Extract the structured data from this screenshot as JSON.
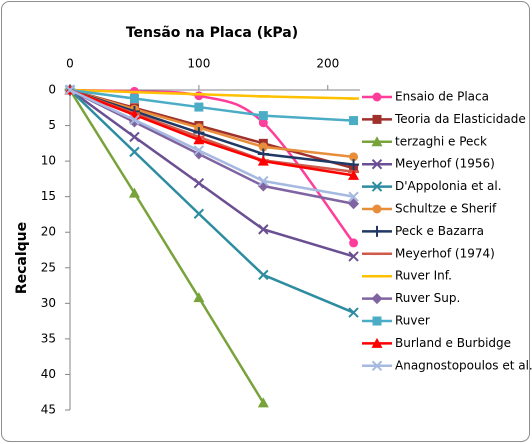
{
  "chart_data": {
    "type": "line",
    "title": "Tensão na Placa (kPa)",
    "y_label": "Recalque",
    "x": [
      0,
      50,
      100,
      150,
      220
    ],
    "xlim": [
      0,
      225
    ],
    "xticks": [
      0,
      100,
      200
    ],
    "ylim": [
      0,
      45
    ],
    "yticks": [
      0,
      5,
      10,
      15,
      20,
      25,
      30,
      35,
      40,
      45
    ],
    "y_inverted": true,
    "x_axis_position": "top",
    "grid": false,
    "legend": "right",
    "series": [
      {
        "name": "Ensaio de Placa",
        "color": "#ff3d9a",
        "marker": "circle",
        "smooth": true,
        "values": [
          0,
          0.2,
          0.8,
          4.6,
          21.5
        ]
      },
      {
        "name": "Teoria da Elasticidade",
        "color": "#a0302c",
        "marker": "square",
        "values": [
          0,
          2.5,
          5,
          7.5,
          11
        ]
      },
      {
        "name": "terzaghi e Peck",
        "color": "#77a33a",
        "marker": "triangle",
        "values": [
          0,
          14.5,
          29.2,
          44,
          null
        ]
      },
      {
        "name": "Meyerhof (1956)",
        "color": "#6b4f93",
        "marker": "x",
        "values": [
          0,
          6.6,
          13.1,
          19.6,
          23.4
        ]
      },
      {
        "name": "D'Appolonia et al.",
        "color": "#2d8ca0",
        "marker": "x",
        "values": [
          0,
          8.7,
          17.4,
          26,
          31.3
        ]
      },
      {
        "name": "Schultze e Sherif",
        "color": "#e88d3a",
        "marker": "circle",
        "values": [
          0,
          2.7,
          5.3,
          8,
          9.4
        ]
      },
      {
        "name": "Peck e Bazarra",
        "color": "#1f3864",
        "marker": "plus",
        "values": [
          0,
          3,
          6,
          9,
          10.5
        ]
      },
      {
        "name": "Meyerhof (1974)",
        "color": "#d05a4a",
        "marker": "dash",
        "values": [
          0,
          3.3,
          6.6,
          9.9,
          11.5
        ]
      },
      {
        "name": "Ruver Inf.",
        "color": "#ffc000",
        "marker": "dash",
        "values": [
          0,
          0.3,
          0.6,
          0.9,
          1.2
        ]
      },
      {
        "name": "Ruver Sup.",
        "color": "#8064a2",
        "marker": "diamond",
        "values": [
          0,
          4.5,
          9,
          13.5,
          16
        ]
      },
      {
        "name": "Ruver",
        "color": "#4bacc6",
        "marker": "square",
        "values": [
          0,
          1.2,
          2.4,
          3.6,
          4.3
        ]
      },
      {
        "name": "Burland e Burbidge",
        "color": "#ff0000",
        "marker": "triangle",
        "values": [
          0,
          3.5,
          7,
          10,
          12
        ]
      },
      {
        "name": "Anagnostopoulos et al.",
        "color": "#a6b9e0",
        "marker": "x",
        "values": [
          0,
          4.2,
          8.5,
          12.8,
          15
        ]
      }
    ]
  }
}
